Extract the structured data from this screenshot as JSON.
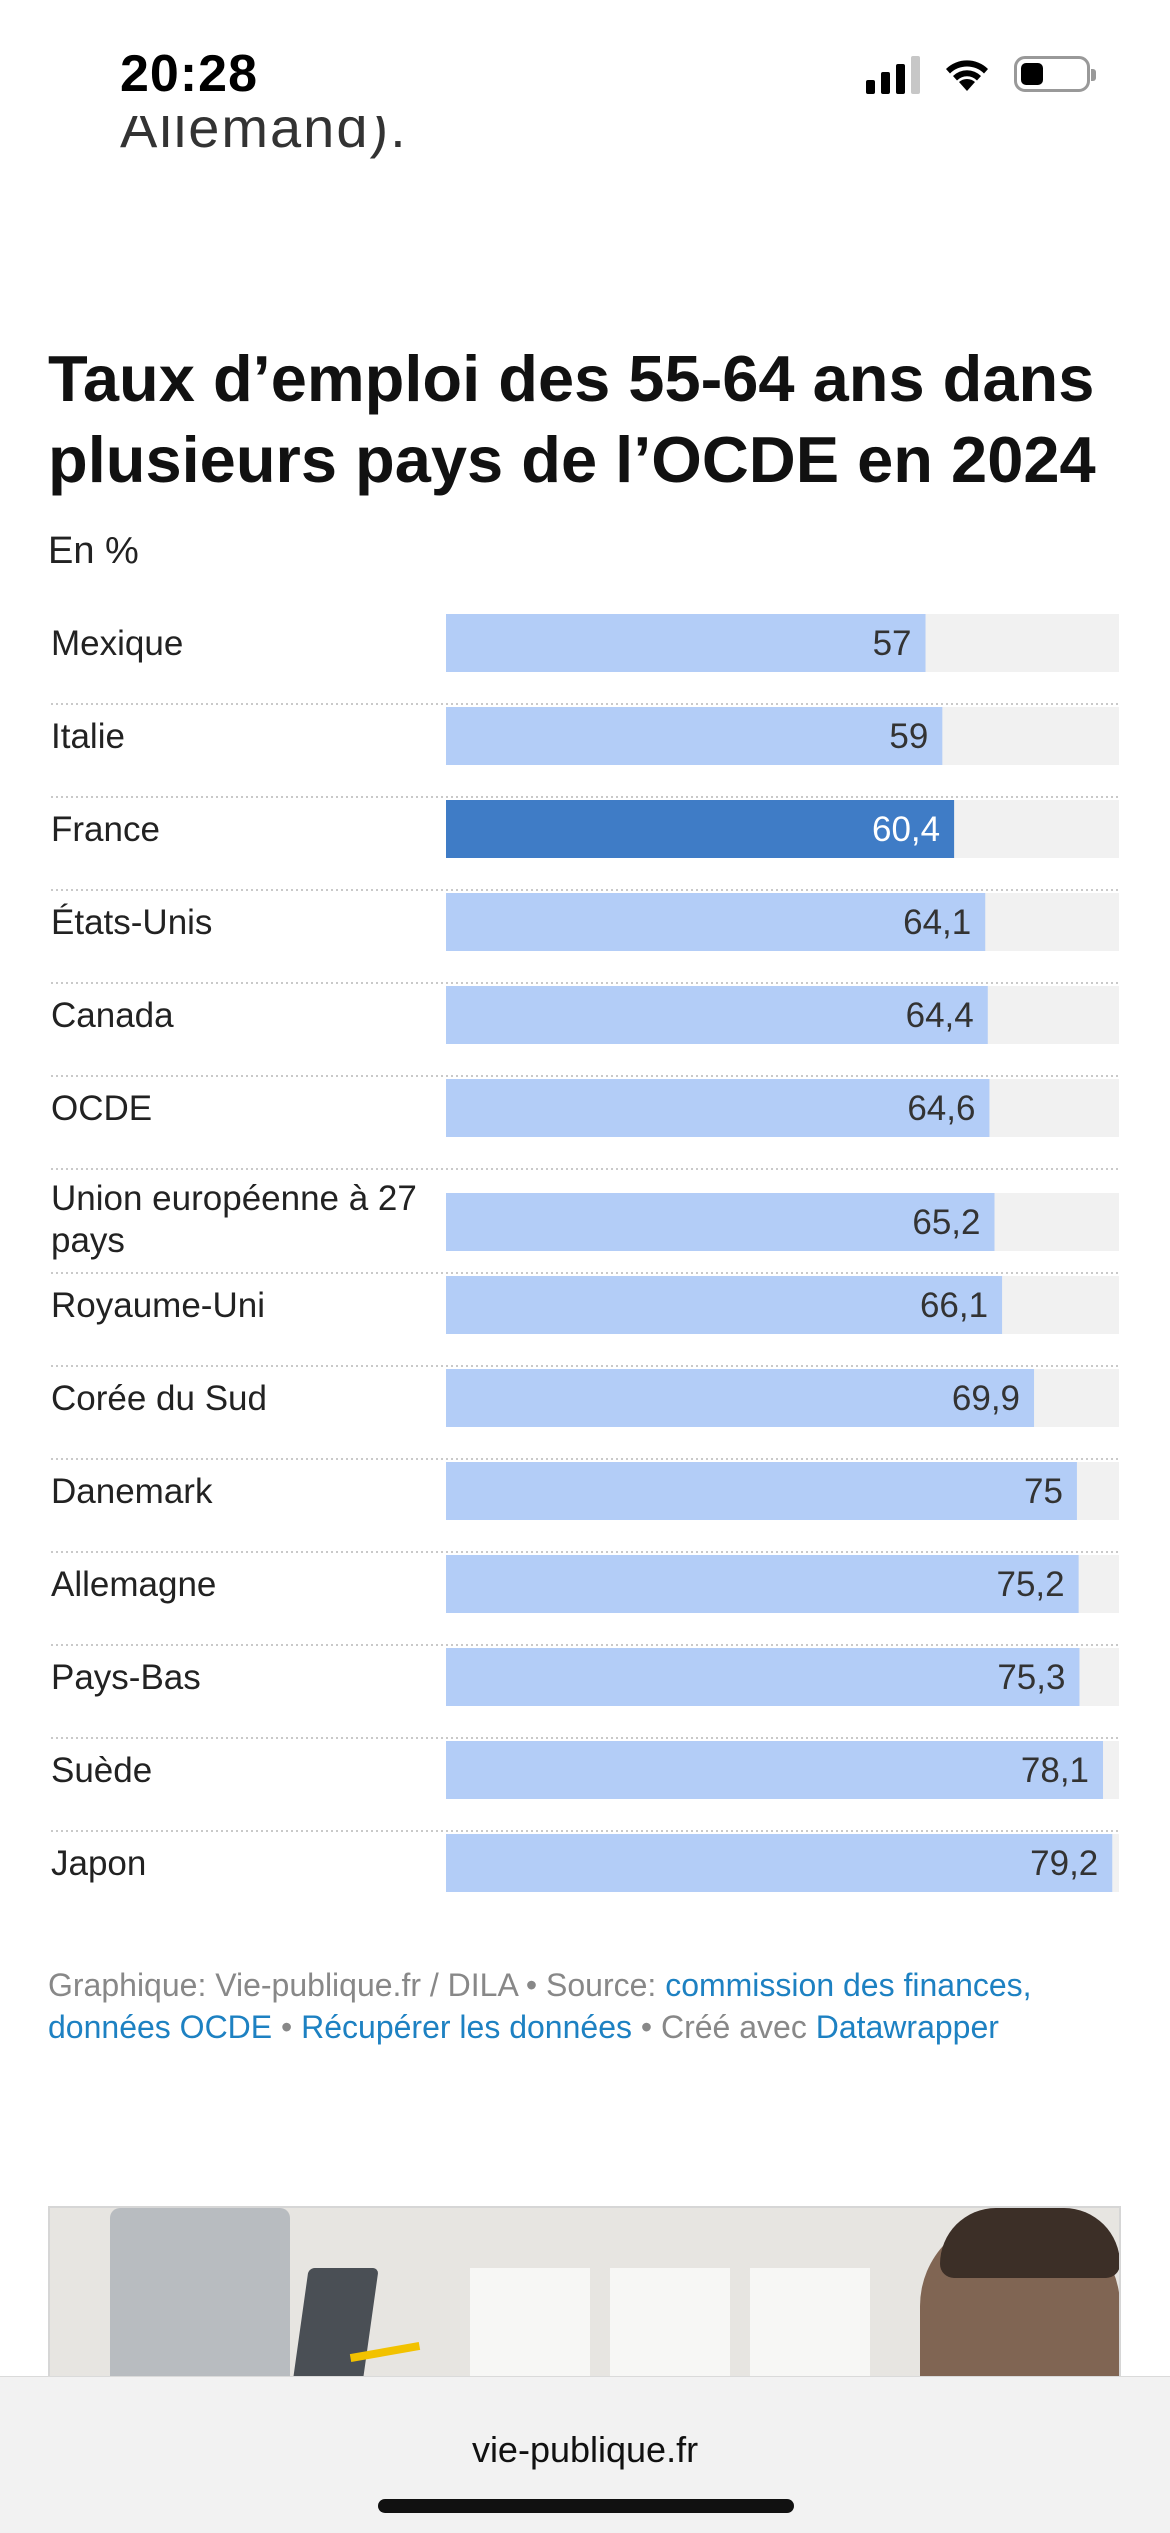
{
  "status_bar": {
    "time": "20:28",
    "battery_level": 0.35,
    "signal_bars": 3,
    "signal_total": 4
  },
  "previous_text": "Allemand).",
  "chart_data": {
    "type": "bar",
    "orientation": "horizontal",
    "title": "Taux d’emploi des 55-64 ans dans plusieurs pays de l’OCDE en 2024",
    "subtitle": "En %",
    "categories": [
      "Mexique",
      "Italie",
      "France",
      "États-Unis",
      "Canada",
      "OCDE",
      "Union européenne à 27 pays",
      "Royaume-Uni",
      "Corée du Sud",
      "Danemark",
      "Allemagne",
      "Pays-Bas",
      "Suède",
      "Japon"
    ],
    "values": [
      57,
      59,
      60.4,
      64.1,
      64.4,
      64.6,
      65.2,
      66.1,
      69.9,
      75,
      75.2,
      75.3,
      78.1,
      79.2
    ],
    "value_labels": [
      "57",
      "59",
      "60,4",
      "64,1",
      "64,4",
      "64,6",
      "65,2",
      "66,1",
      "69,9",
      "75",
      "75,2",
      "75,3",
      "78,1",
      "79,2"
    ],
    "highlight": "France",
    "xlim": [
      0,
      80
    ],
    "colors": {
      "bar": "#b3cdf7",
      "highlight": "#3f7cc6",
      "track": "#f1f1f1",
      "separator": "#c9c9c9"
    }
  },
  "source": {
    "prefix": "Graphique: Vie-publique.fr / DILA • Source: ",
    "source_link": "commission des finances, données OCDE",
    "sep1": " • ",
    "data_link": "Récupérer les données",
    "sep2": " • Créé avec ",
    "tool_link": "Datawrapper"
  },
  "browser": {
    "url": "vie-publique.fr"
  }
}
